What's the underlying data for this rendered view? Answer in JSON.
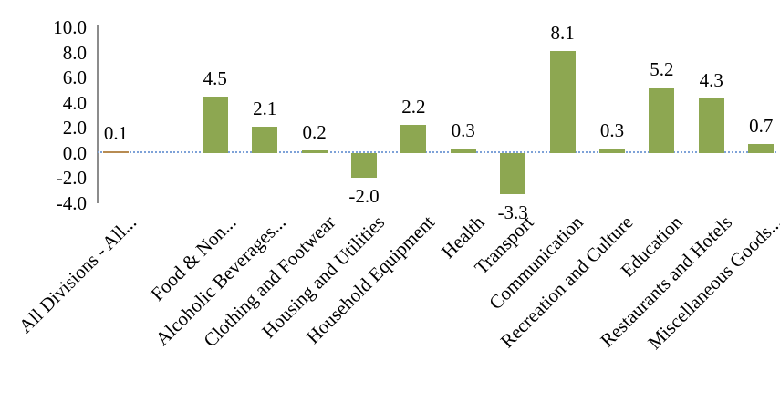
{
  "chart_data": {
    "type": "bar",
    "title": "",
    "xlabel": "",
    "ylabel": "",
    "legend": "none",
    "gridlines": "zero-line-only",
    "categories": [
      "All Divisions - All...",
      "",
      "Food & Non...",
      "Alcoholic Beverages...",
      "Clothing and Footwear",
      "Housing and Utilities",
      "Household Equipment",
      "Health",
      "Transport",
      "Communication",
      "Recreation and Culture",
      "Education",
      "Restaurants and Hotels",
      "Miscellaneous Goods..."
    ],
    "values": [
      0.1,
      null,
      4.5,
      2.1,
      0.2,
      -2.0,
      2.2,
      0.3,
      -3.3,
      8.1,
      0.3,
      5.2,
      4.3,
      0.7
    ],
    "data_labels": [
      "0.1",
      "",
      "4.5",
      "2.1",
      "0.2",
      "-2.0",
      "2.2",
      "0.3",
      "-3.3",
      "8.1",
      "0.3",
      "5.2",
      "4.3",
      "0.7"
    ],
    "y_ticks": [
      10.0,
      8.0,
      6.0,
      4.0,
      2.0,
      0.0,
      -2.0,
      -4.0
    ],
    "y_tick_labels": [
      "10.0",
      "8.0",
      "6.0",
      "4.0",
      "2.0",
      "0.0",
      "-2.0",
      "-4.0"
    ],
    "ylim": [
      -4.0,
      10.0
    ],
    "colors": {
      "bar_default": "#8DA751",
      "bar_first": "#B78B52",
      "zero_line": "#7EA2D8",
      "axis_line": "#8C8C8C",
      "text": "#000000",
      "background": "#FFFFFF"
    },
    "point_colors": [
      "#B78B52",
      null,
      "#8DA751",
      "#8DA751",
      "#8DA751",
      "#8DA751",
      "#8DA751",
      "#8DA751",
      "#8DA751",
      "#8DA751",
      "#8DA751",
      "#8DA751",
      "#8DA751",
      "#8DA751"
    ]
  }
}
